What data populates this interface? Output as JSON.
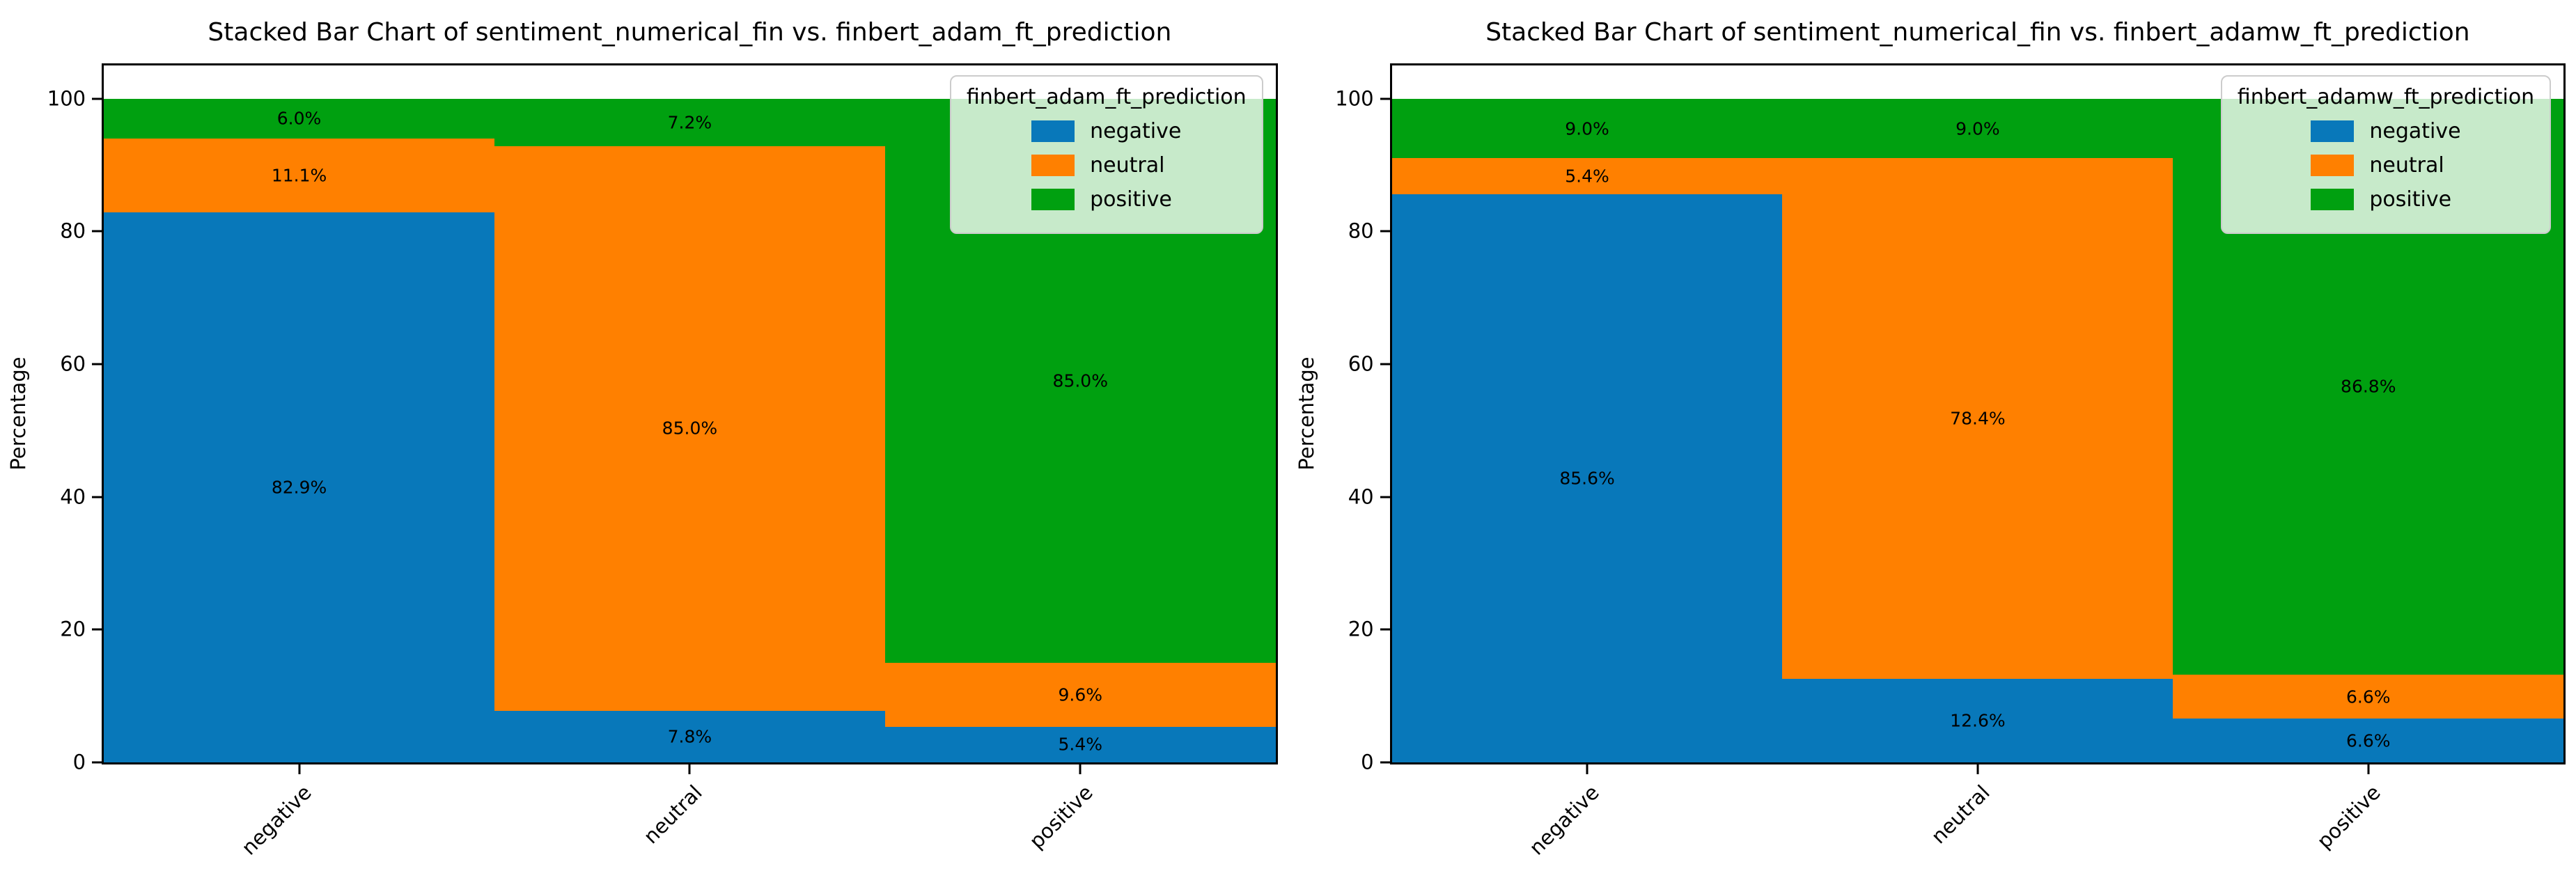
{
  "figure": {
    "background": "#ffffff"
  },
  "chart_data": [
    {
      "type": "bar",
      "stacked": true,
      "title": "Stacked Bar Chart of sentiment_numerical_fin vs. finbert_adam_ft_prediction",
      "xlabel": "",
      "ylabel": "Percentage",
      "categories": [
        "negative",
        "neutral",
        "positive"
      ],
      "yticks": [
        0,
        20,
        40,
        60,
        80,
        100
      ],
      "ylim": [
        0,
        105
      ],
      "grid": false,
      "legend": {
        "title": "finbert_adam_ft_prediction",
        "position": "upper right"
      },
      "series": [
        {
          "name": "negative",
          "color": "#0878ba",
          "values": [
            82.9,
            7.8,
            5.4
          ]
        },
        {
          "name": "neutral",
          "color": "#ff8000",
          "values": [
            11.1,
            85.0,
            9.6
          ]
        },
        {
          "name": "positive",
          "color": "#00a010",
          "values": [
            6.0,
            7.2,
            85.0
          ]
        }
      ],
      "bar_labels": [
        [
          "82.9%",
          "7.8%",
          "5.4%"
        ],
        [
          "11.1%",
          "85.0%",
          "9.6%"
        ],
        [
          "6.0%",
          "7.2%",
          "85.0%"
        ]
      ]
    },
    {
      "type": "bar",
      "stacked": true,
      "title": "Stacked Bar Chart of sentiment_numerical_fin vs. finbert_adamw_ft_prediction",
      "xlabel": "",
      "ylabel": "Percentage",
      "categories": [
        "negative",
        "neutral",
        "positive"
      ],
      "yticks": [
        0,
        20,
        40,
        60,
        80,
        100
      ],
      "ylim": [
        0,
        105
      ],
      "grid": false,
      "legend": {
        "title": "finbert_adamw_ft_prediction",
        "position": "upper right"
      },
      "series": [
        {
          "name": "negative",
          "color": "#0878ba",
          "values": [
            85.6,
            12.6,
            6.6
          ]
        },
        {
          "name": "neutral",
          "color": "#ff8000",
          "values": [
            5.4,
            78.4,
            6.6
          ]
        },
        {
          "name": "positive",
          "color": "#00a010",
          "values": [
            9.0,
            9.0,
            86.8
          ]
        }
      ],
      "bar_labels": [
        [
          "85.6%",
          "12.6%",
          "6.6%"
        ],
        [
          "5.4%",
          "78.4%",
          "6.6%"
        ],
        [
          "9.0%",
          "9.0%",
          "86.8%"
        ]
      ]
    }
  ]
}
